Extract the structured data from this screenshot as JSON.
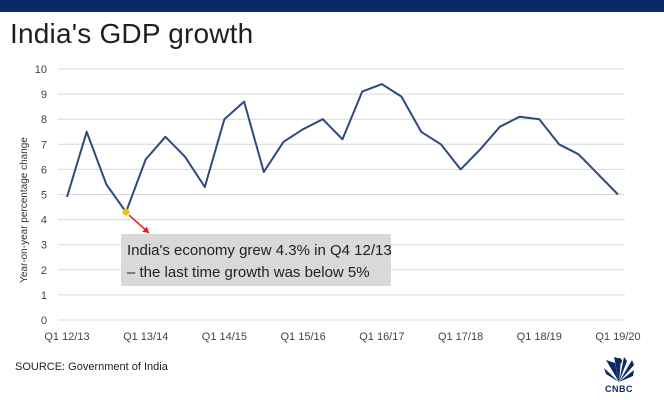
{
  "title": "India's GDP growth",
  "source": "SOURCE: Government of India",
  "logo_text": "CNBC",
  "colors": {
    "line": "#2e4a7d",
    "brand": "#0b2a63",
    "arrow": "#e02020",
    "marker": "#f3c400",
    "callout_bg": "#d9d9d9"
  },
  "callout": {
    "line1": "India's economy grew 4.3% in Q4 12/13",
    "line2": "– the last time growth was below 5%"
  },
  "chart_data": {
    "type": "line",
    "title": "India's GDP growth",
    "xlabel": "",
    "ylabel": "Year-on-year percentage change",
    "ylim": [
      0,
      10
    ],
    "yticks": [
      0,
      1,
      2,
      3,
      4,
      5,
      6,
      7,
      8,
      9,
      10
    ],
    "grid": true,
    "x_tick_labels": [
      "Q1 12/13",
      "Q1 13/14",
      "Q1 14/15",
      "Q1 15/16",
      "Q1 16/17",
      "Q1 17/18",
      "Q1 18/19",
      "Q1 19/20"
    ],
    "x": [
      "Q1 12/13",
      "Q2 12/13",
      "Q3 12/13",
      "Q4 12/13",
      "Q1 13/14",
      "Q2 13/14",
      "Q3 13/14",
      "Q4 13/14",
      "Q1 14/15",
      "Q2 14/15",
      "Q3 14/15",
      "Q4 14/15",
      "Q1 15/16",
      "Q2 15/16",
      "Q3 15/16",
      "Q4 15/16",
      "Q1 16/17",
      "Q2 16/17",
      "Q3 16/17",
      "Q4 16/17",
      "Q1 17/18",
      "Q2 17/18",
      "Q3 17/18",
      "Q4 17/18",
      "Q1 18/19",
      "Q2 18/19",
      "Q3 18/19",
      "Q4 18/19",
      "Q1 19/20"
    ],
    "series": [
      {
        "name": "",
        "values": [
          4.9,
          7.5,
          5.4,
          4.3,
          6.4,
          7.3,
          6.5,
          5.3,
          8.0,
          8.7,
          5.9,
          7.1,
          7.6,
          8.0,
          7.2,
          9.1,
          9.4,
          8.9,
          7.5,
          7.0,
          6.0,
          6.8,
          7.7,
          8.1,
          8.0,
          7.0,
          6.6,
          5.8,
          5.0
        ]
      }
    ],
    "annotations": [
      {
        "x": "Q4 12/13",
        "y": 4.3,
        "text": "India's economy grew 4.3% in Q4 12/13 – the last time growth was below 5%"
      }
    ]
  }
}
